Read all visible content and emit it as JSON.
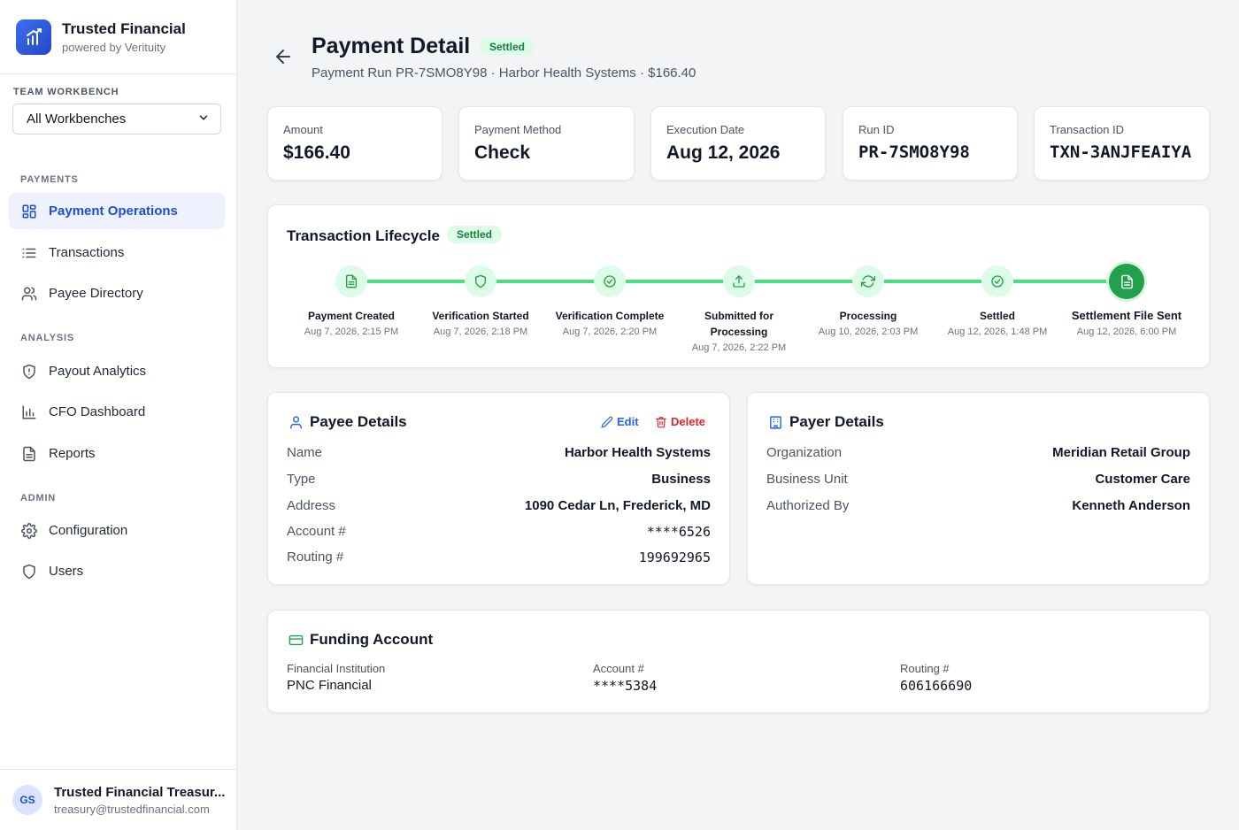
{
  "brand": {
    "name": "Trusted Financial",
    "tagline": "powered by Verituity"
  },
  "workbench": {
    "label": "TEAM WORKBENCH",
    "selected": "All Workbenches"
  },
  "sidebar": {
    "sections": {
      "payments": "PAYMENTS",
      "analysis": "ANALYSIS",
      "admin": "ADMIN"
    },
    "items": [
      {
        "label": "Payment Operations",
        "icon": "grid-icon",
        "active": true
      },
      {
        "label": "Transactions",
        "icon": "list-icon"
      },
      {
        "label": "Payee Directory",
        "icon": "users-icon"
      },
      {
        "label": "Payout Analytics",
        "icon": "shield-alert-icon"
      },
      {
        "label": "CFO Dashboard",
        "icon": "bar-chart-icon"
      },
      {
        "label": "Reports",
        "icon": "document-icon"
      },
      {
        "label": "Configuration",
        "icon": "gear-icon"
      },
      {
        "label": "Users",
        "icon": "shield-icon"
      }
    ]
  },
  "user": {
    "initials": "GS",
    "name": "Trusted Financial Treasur...",
    "email": "treasury@trustedfinancial.com"
  },
  "header": {
    "title": "Payment Detail",
    "status": "Settled",
    "subtitle": "Payment Run PR-7SMO8Y98 · Harbor Health Systems · $166.40"
  },
  "stats": [
    {
      "label": "Amount",
      "value": "$166.40"
    },
    {
      "label": "Payment Method",
      "value": "Check"
    },
    {
      "label": "Execution Date",
      "value": "Aug 12, 2026"
    },
    {
      "label": "Run ID",
      "value": "PR-7SMO8Y98"
    },
    {
      "label": "Transaction ID",
      "value": "TXN-3ANJFEAIYA"
    }
  ],
  "lifecycle": {
    "title": "Transaction Lifecycle",
    "status": "Settled",
    "steps": [
      {
        "name": "Payment Created",
        "date": "Aug 7, 2026, 2:15 PM",
        "icon": "document-icon"
      },
      {
        "name": "Verification Started",
        "date": "Aug 7, 2026, 2:18 PM",
        "icon": "shield-icon"
      },
      {
        "name": "Verification Complete",
        "date": "Aug 7, 2026, 2:20 PM",
        "icon": "check-circle-icon"
      },
      {
        "name": "Submitted for Processing",
        "date": "Aug 7, 2026, 2:22 PM",
        "icon": "upload-icon"
      },
      {
        "name": "Processing",
        "date": "Aug 10, 2026, 2:03 PM",
        "icon": "refresh-icon"
      },
      {
        "name": "Settled",
        "date": "Aug 12, 2026, 1:48 PM",
        "icon": "check-circle-icon"
      },
      {
        "name": "Settlement File Sent",
        "date": "Aug 12, 2026, 6:00 PM",
        "icon": "document-icon"
      }
    ]
  },
  "payee": {
    "title": "Payee Details",
    "edit": "Edit",
    "delete": "Delete",
    "rows": [
      {
        "key": "Name",
        "value": "Harbor Health Systems"
      },
      {
        "key": "Type",
        "value": "Business"
      },
      {
        "key": "Address",
        "value": "1090 Cedar Ln, Frederick, MD"
      },
      {
        "key": "Account #",
        "value": "****6526"
      },
      {
        "key": "Routing #",
        "value": "199692965"
      }
    ]
  },
  "payer": {
    "title": "Payer Details",
    "rows": [
      {
        "key": "Organization",
        "value": "Meridian Retail Group"
      },
      {
        "key": "Business Unit",
        "value": "Customer Care"
      },
      {
        "key": "Authorized By",
        "value": "Kenneth Anderson"
      }
    ]
  },
  "funding": {
    "title": "Funding Account",
    "institution_label": "Financial Institution",
    "institution": "PNC Financial",
    "account_label": "Account #",
    "account": "****5384",
    "routing_label": "Routing #",
    "routing": "606166690"
  },
  "colors": {
    "accent": "#1d4ed8",
    "success": "#22a04b",
    "success_light": "#dcfce7",
    "danger": "#dc2626"
  }
}
